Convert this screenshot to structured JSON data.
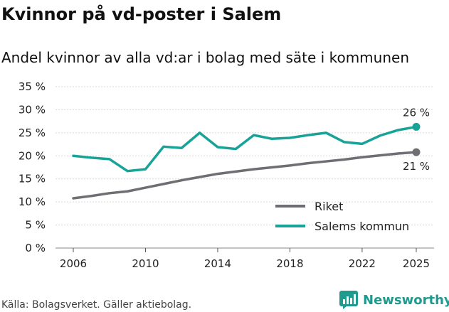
{
  "header": {
    "title": "Kvinnor på vd-poster i Salem",
    "subtitle": "Andel kvinnor av alla vd:ar i bolag med säte i kommunen"
  },
  "footer": {
    "source": "Källa: Bolagsverket. Gäller aktiebolag.",
    "brand": "Newsworthy"
  },
  "colors": {
    "riket": "#6e6e73",
    "salem": "#17a397",
    "grid": "#d9d9d9",
    "brand": "#1e9a8f"
  },
  "icons": {
    "brand_logo": "bar-chart-logo-icon"
  },
  "chart_data": {
    "type": "line",
    "title": "Kvinnor på vd-poster i Salem",
    "subtitle": "Andel kvinnor av alla vd:ar i bolag med säte i kommunen",
    "xlabel": "",
    "ylabel": "",
    "x": [
      2006,
      2007,
      2008,
      2009,
      2010,
      2011,
      2012,
      2013,
      2014,
      2015,
      2016,
      2017,
      2018,
      2019,
      2020,
      2021,
      2022,
      2023,
      2024,
      2025
    ],
    "xticks": [
      2006,
      2010,
      2014,
      2018,
      2022,
      2025
    ],
    "xlim": [
      2006,
      2025
    ],
    "ylim": [
      0,
      35
    ],
    "yticks": [
      0,
      5,
      10,
      15,
      20,
      25,
      30,
      35
    ],
    "ytick_labels": [
      "0 %",
      "5 %",
      "10 %",
      "15 %",
      "20 %",
      "25 %",
      "30 %",
      "35 %"
    ],
    "grid": true,
    "legend_position": "bottom-right",
    "series": [
      {
        "name": "Riket",
        "color_key": "riket",
        "values": [
          10.8,
          11.3,
          11.9,
          12.3,
          13.1,
          13.9,
          14.7,
          15.4,
          16.1,
          16.6,
          17.1,
          17.5,
          17.9,
          18.4,
          18.8,
          19.2,
          19.7,
          20.1,
          20.5,
          20.8
        ],
        "end_label": "21 %"
      },
      {
        "name": "Salems kommun",
        "color_key": "salem",
        "values": [
          20.0,
          19.6,
          19.3,
          16.7,
          17.1,
          22.0,
          21.7,
          25.0,
          21.9,
          21.5,
          24.5,
          23.7,
          23.9,
          24.5,
          25.0,
          23.0,
          22.6,
          24.4,
          25.6,
          26.3
        ],
        "end_label": "26 %"
      }
    ]
  }
}
